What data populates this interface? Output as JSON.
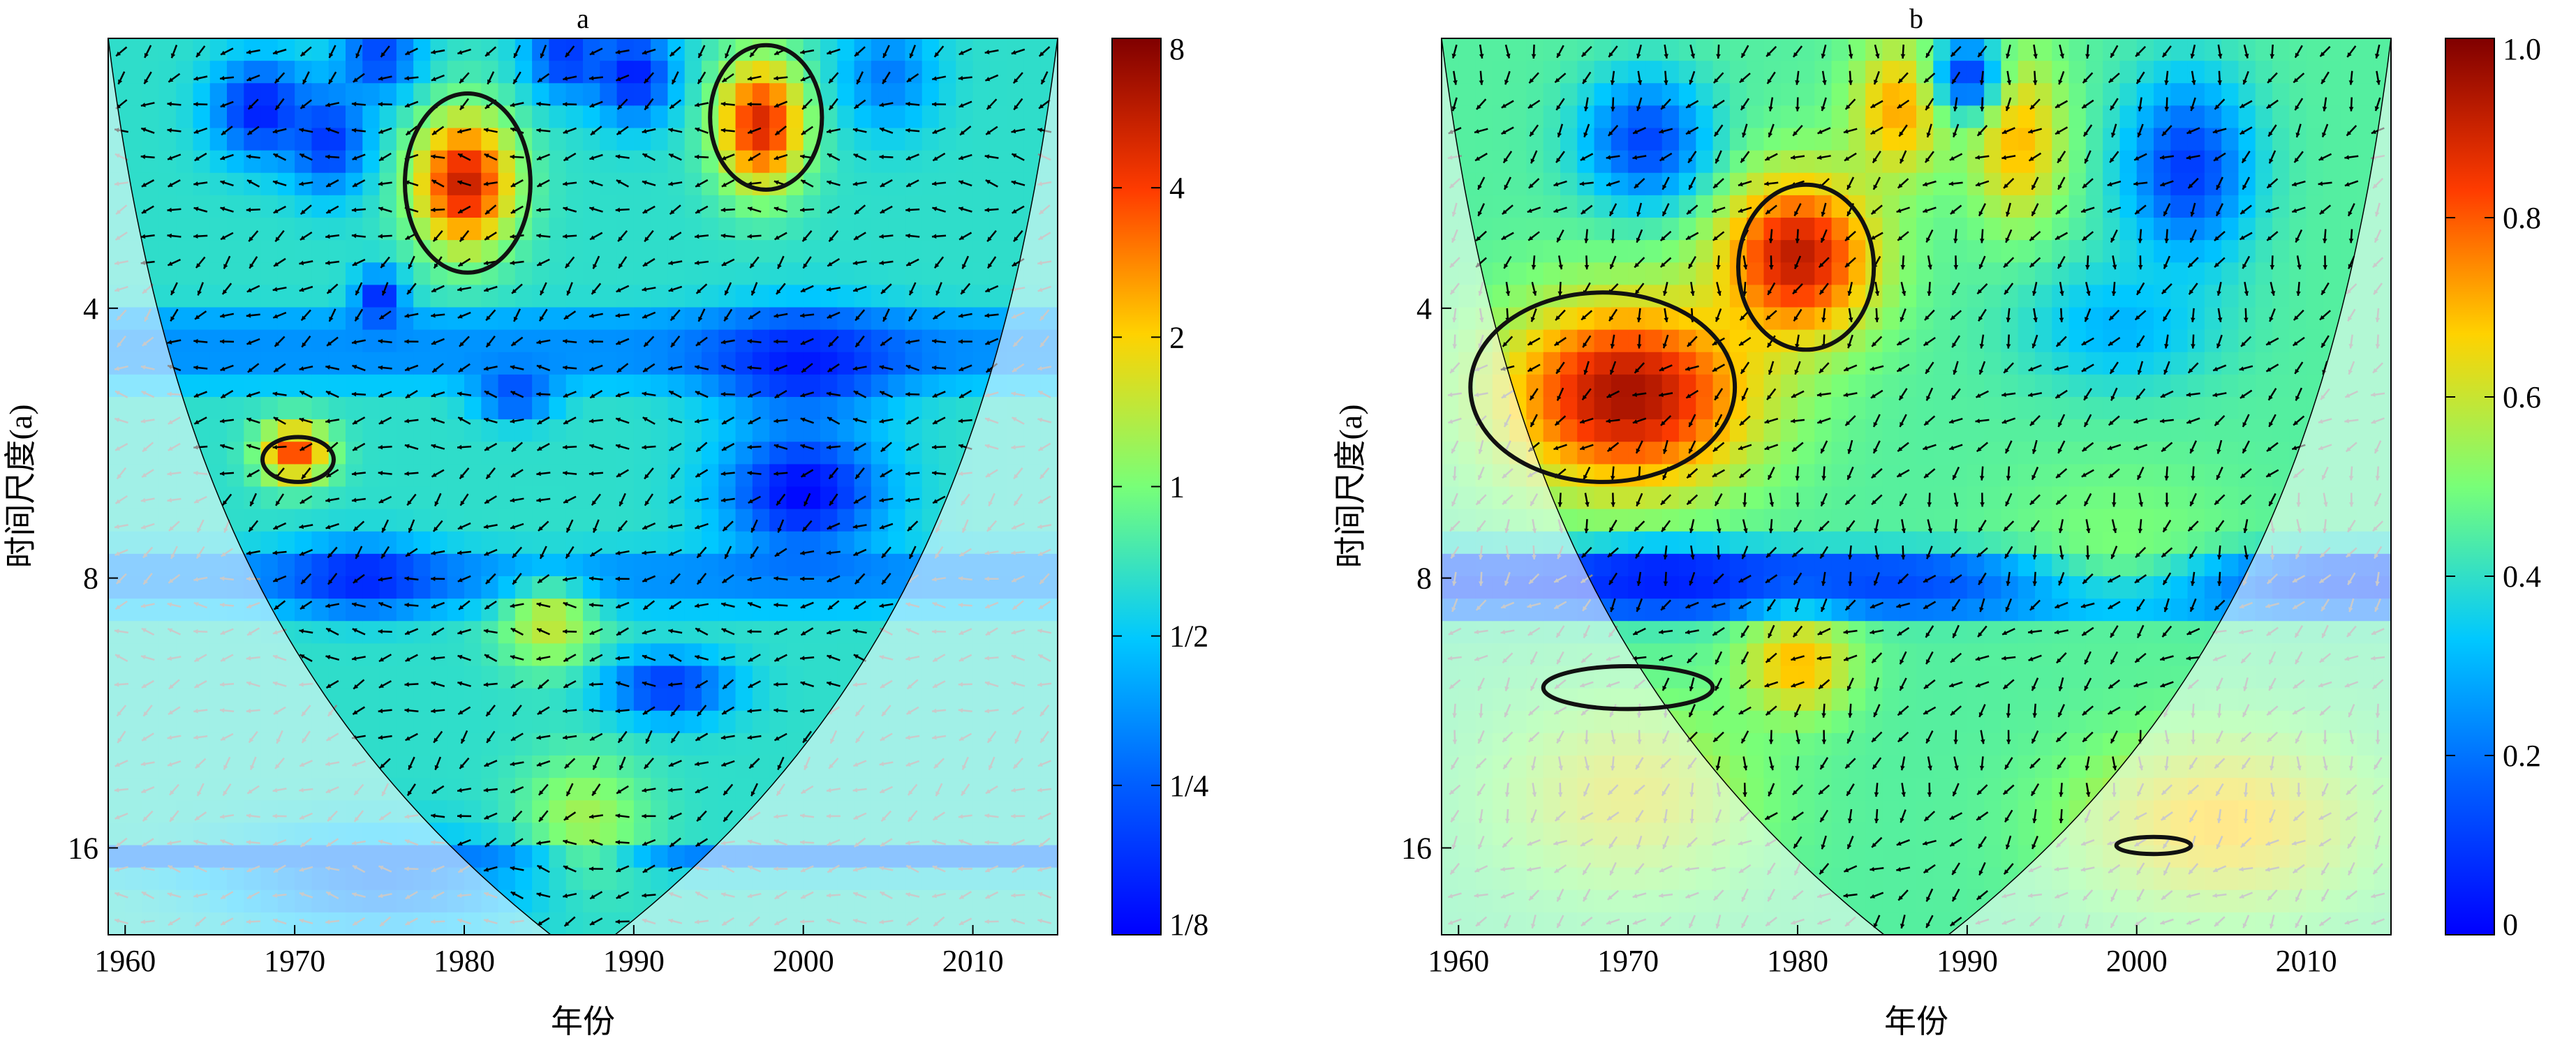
{
  "chart_data": [
    {
      "type": "heatmap",
      "title": "a",
      "xlabel": "年份",
      "ylabel": "时间尺度(a)",
      "xlim": [
        1959,
        2015
      ],
      "ylim": [
        2,
        20
      ],
      "yscale": "log2",
      "y_reversed": true,
      "x_ticks": [
        1960,
        1970,
        1980,
        1990,
        2000,
        2010
      ],
      "y_ticks": [
        4,
        8,
        16
      ],
      "colorbar": {
        "scale": "log2",
        "range": [
          0.125,
          8
        ],
        "tick_values": [
          8,
          4,
          2,
          1,
          0.5,
          0.25,
          0.125
        ],
        "tick_labels": [
          "8",
          "4",
          "2",
          "1",
          "1/2",
          "1/4",
          "1/8"
        ]
      },
      "cone_of_influence": true,
      "blobs": [
        {
          "x": 1968,
          "y": 2.4,
          "rx": 3,
          "ry": 0.35,
          "v": 0.15
        },
        {
          "x": 1972,
          "y": 2.6,
          "rx": 2.5,
          "ry": 0.4,
          "v": 0.18
        },
        {
          "x": 1975,
          "y": 2.1,
          "rx": 2.5,
          "ry": 0.25,
          "v": 0.2
        },
        {
          "x": 1986,
          "y": 2.1,
          "rx": 2.5,
          "ry": 0.25,
          "v": 0.18
        },
        {
          "x": 1990,
          "y": 2.2,
          "rx": 2.5,
          "ry": 0.3,
          "v": 0.15
        },
        {
          "x": 1980,
          "y": 2.9,
          "rx": 3.2,
          "ry": 0.6,
          "v": 5.5
        },
        {
          "x": 1997.5,
          "y": 2.5,
          "rx": 2.8,
          "ry": 0.5,
          "v": 5.0
        },
        {
          "x": 2005,
          "y": 2.2,
          "rx": 3,
          "ry": 0.35,
          "v": 0.3
        },
        {
          "x": 1975,
          "y": 3.9,
          "rx": 1.5,
          "ry": 0.3,
          "v": 0.15
        },
        {
          "x": 1983,
          "y": 5.0,
          "rx": 2.5,
          "ry": 0.35,
          "v": 0.2
        },
        {
          "x": 1970,
          "y": 5.8,
          "rx": 2.2,
          "ry": 0.5,
          "v": 4.0
        },
        {
          "x": 2000,
          "y": 4.6,
          "rx": 6,
          "ry": 0.7,
          "v": 0.15
        },
        {
          "x": 2000,
          "y": 6.4,
          "rx": 5,
          "ry": 1.2,
          "v": 0.13
        },
        {
          "x": 1974,
          "y": 8.0,
          "rx": 4.5,
          "ry": 0.8,
          "v": 0.16
        },
        {
          "x": 1992,
          "y": 10.6,
          "rx": 4,
          "ry": 1.0,
          "v": 0.18
        },
        {
          "x": 1985,
          "y": 9.0,
          "rx": 3,
          "ry": 1.2,
          "v": 1.5
        },
        {
          "x": 1987,
          "y": 15,
          "rx": 4,
          "ry": 3,
          "v": 1.3
        },
        {
          "x": 1975,
          "y": 17.5,
          "rx": 10,
          "ry": 2.5,
          "v": 0.3
        }
      ],
      "bands": [
        {
          "y1": 4.0,
          "y2": 4.9,
          "v": 0.35
        },
        {
          "y1": 7.4,
          "y2": 8.7,
          "v": 0.35
        },
        {
          "y1": 16.0,
          "y2": 17.2,
          "v": 0.3
        }
      ],
      "background_value": 0.65,
      "contours": [
        {
          "x": 1980.2,
          "y": 2.9,
          "rx": 3.7,
          "ry": 0.75
        },
        {
          "x": 1997.8,
          "y": 2.45,
          "rx": 3.3,
          "ry": 0.5
        },
        {
          "x": 1970.2,
          "y": 5.9,
          "rx": 2.1,
          "ry": 0.35
        }
      ]
    },
    {
      "type": "heatmap",
      "title": "b",
      "xlabel": "年份",
      "ylabel": "时间尺度(a)",
      "xlim": [
        1959,
        2015
      ],
      "ylim": [
        2,
        20
      ],
      "yscale": "log2",
      "y_reversed": true,
      "x_ticks": [
        1960,
        1970,
        1980,
        1990,
        2000,
        2010
      ],
      "y_ticks": [
        4,
        8,
        16
      ],
      "colorbar": {
        "scale": "linear",
        "range": [
          0,
          1
        ],
        "tick_values": [
          1.0,
          0.8,
          0.6,
          0.4,
          0.2,
          0
        ],
        "tick_labels": [
          "1.0",
          "0.8",
          "0.6",
          "0.4",
          "0.2",
          "0"
        ]
      },
      "cone_of_influence": true,
      "blobs": [
        {
          "x": 1970,
          "y": 5.0,
          "rx": 8,
          "ry": 1.5,
          "v": 0.95
        },
        {
          "x": 1980,
          "y": 3.5,
          "rx": 5,
          "ry": 0.9,
          "v": 0.92
        },
        {
          "x": 1986,
          "y": 2.4,
          "rx": 3,
          "ry": 0.5,
          "v": 0.72
        },
        {
          "x": 1993,
          "y": 2.6,
          "rx": 3,
          "ry": 0.7,
          "v": 0.7
        },
        {
          "x": 1971,
          "y": 2.6,
          "rx": 4,
          "ry": 0.5,
          "v": 0.12
        },
        {
          "x": 1990,
          "y": 2.2,
          "rx": 2,
          "ry": 0.25,
          "v": 0.1
        },
        {
          "x": 2003,
          "y": 2.8,
          "rx": 4,
          "ry": 0.8,
          "v": 0.1
        },
        {
          "x": 1999,
          "y": 4.2,
          "rx": 6,
          "ry": 0.8,
          "v": 0.3
        },
        {
          "x": 1972,
          "y": 8.0,
          "rx": 6,
          "ry": 0.7,
          "v": 0.05
        },
        {
          "x": 1980,
          "y": 10.0,
          "rx": 3.5,
          "ry": 1.5,
          "v": 0.7
        },
        {
          "x": 1999,
          "y": 7.2,
          "rx": 8,
          "ry": 1.8,
          "v": 0.5
        },
        {
          "x": 1970,
          "y": 14,
          "rx": 8,
          "ry": 4,
          "v": 0.62
        },
        {
          "x": 2005,
          "y": 15,
          "rx": 9,
          "ry": 4,
          "v": 0.68
        }
      ],
      "bands": [
        {
          "y1": 7.4,
          "y2": 8.9,
          "v": 0.12
        }
      ],
      "background_value": 0.45,
      "contours": [
        {
          "x": 1980.5,
          "y": 3.6,
          "rx": 4.0,
          "ry": 0.85
        },
        {
          "x": 1968.5,
          "y": 4.9,
          "rx": 7.8,
          "ry": 1.35
        },
        {
          "x": 1970,
          "y": 10.6,
          "rx": 5,
          "ry": 0.6
        },
        {
          "x": 2001,
          "y": 15.9,
          "rx": 2.2,
          "ry": 0.35
        }
      ]
    }
  ]
}
